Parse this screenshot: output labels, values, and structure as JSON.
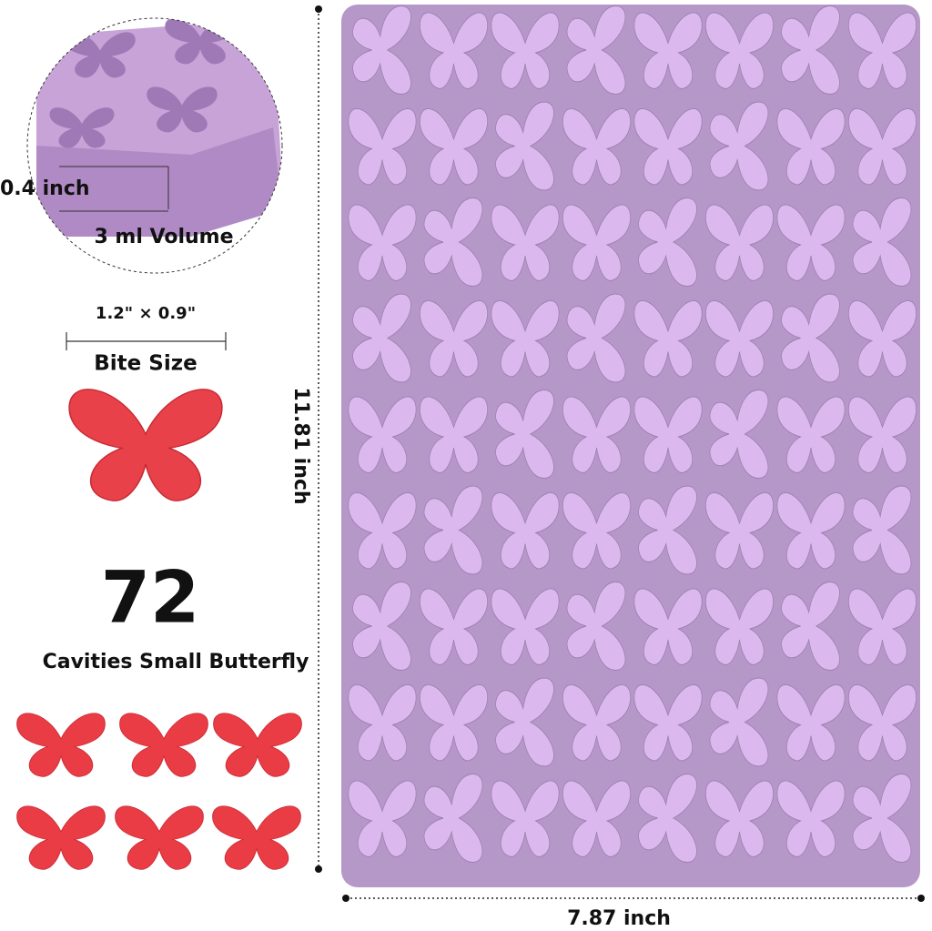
{
  "callout": {
    "depth": "0.4 inch",
    "volume": "3 ml Volume"
  },
  "bite": {
    "size": "1.2\" × 0.9\"",
    "label": "Bite Size"
  },
  "count": {
    "number": "72",
    "label": "Cavities Small Butterfly"
  },
  "dimensions": {
    "height": "11.81 inch",
    "width": "7.87 inch"
  }
}
